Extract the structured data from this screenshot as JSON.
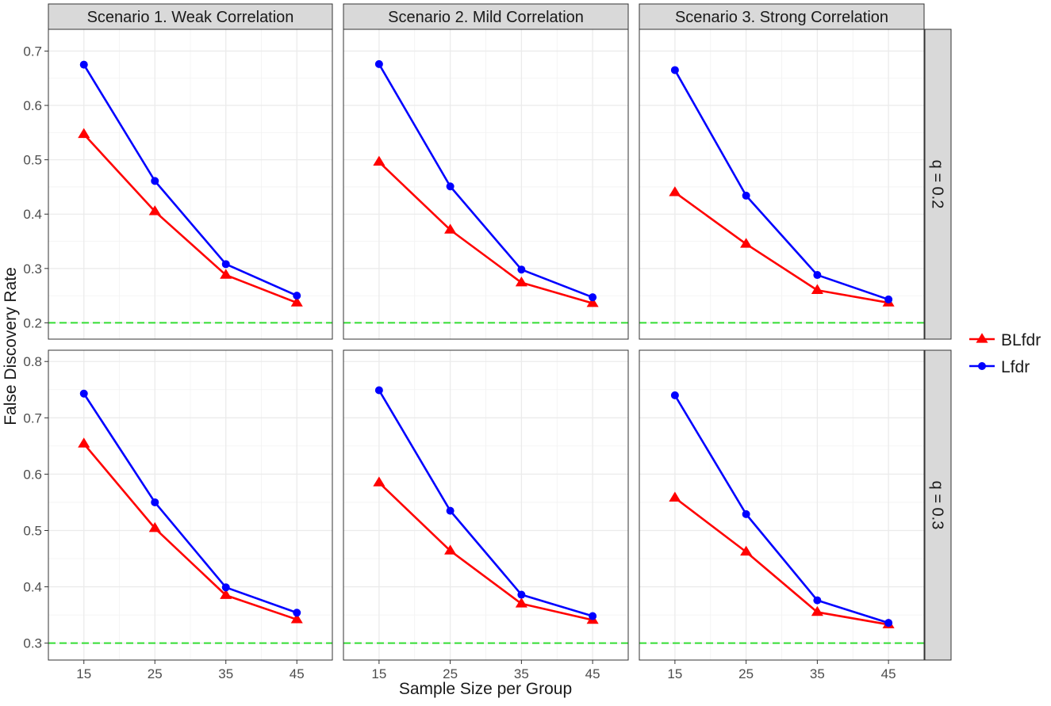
{
  "chart_data": {
    "type": "line",
    "title": "",
    "xlabel": "Sample Size per Group",
    "ylabel": "False Discovery Rate",
    "x": [
      15,
      25,
      35,
      45
    ],
    "x_tick_labels": [
      "15",
      "25",
      "35",
      "45"
    ],
    "xlim": [
      10,
      50
    ],
    "legend": {
      "placement": "right",
      "entries": [
        {
          "name": "BLfdr",
          "color": "#ff0000",
          "marker": "triangle"
        },
        {
          "name": "Lfdr",
          "color": "#0000ff",
          "marker": "circle"
        }
      ]
    },
    "reference_color": "#33dd33",
    "columns": [
      "Scenario 1. Weak Correlation",
      "Scenario 2. Mild Correlation",
      "Scenario 3. Strong Correlation"
    ],
    "rows": [
      {
        "label": "q = 0.2",
        "reference_line": 0.2,
        "ylim": [
          0.17,
          0.74
        ],
        "y_ticks": [
          0.2,
          0.3,
          0.4,
          0.5,
          0.6,
          0.7
        ],
        "y_tick_labels": [
          "0.2",
          "0.3",
          "0.4",
          "0.5",
          "0.6",
          "0.7"
        ],
        "panels": [
          {
            "series": [
              {
                "name": "BLfdr",
                "values": [
                  0.547,
                  0.405,
                  0.288,
                  0.237
                ]
              },
              {
                "name": "Lfdr",
                "values": [
                  0.675,
                  0.461,
                  0.308,
                  0.25
                ]
              }
            ]
          },
          {
            "series": [
              {
                "name": "BLfdr",
                "values": [
                  0.496,
                  0.371,
                  0.274,
                  0.236
                ]
              },
              {
                "name": "Lfdr",
                "values": [
                  0.676,
                  0.451,
                  0.298,
                  0.247
                ]
              }
            ]
          },
          {
            "series": [
              {
                "name": "BLfdr",
                "values": [
                  0.44,
                  0.345,
                  0.26,
                  0.237
                ]
              },
              {
                "name": "Lfdr",
                "values": [
                  0.665,
                  0.434,
                  0.288,
                  0.243
                ]
              }
            ]
          }
        ]
      },
      {
        "label": "q = 0.3",
        "reference_line": 0.3,
        "ylim": [
          0.27,
          0.82
        ],
        "y_ticks": [
          0.3,
          0.4,
          0.5,
          0.6,
          0.7,
          0.8
        ],
        "y_tick_labels": [
          "0.3",
          "0.4",
          "0.5",
          "0.6",
          "0.7",
          "0.8"
        ],
        "panels": [
          {
            "series": [
              {
                "name": "BLfdr",
                "values": [
                  0.654,
                  0.504,
                  0.385,
                  0.342
                ]
              },
              {
                "name": "Lfdr",
                "values": [
                  0.743,
                  0.55,
                  0.399,
                  0.354
                ]
              }
            ]
          },
          {
            "series": [
              {
                "name": "BLfdr",
                "values": [
                  0.585,
                  0.464,
                  0.37,
                  0.341
                ]
              },
              {
                "name": "Lfdr",
                "values": [
                  0.749,
                  0.535,
                  0.386,
                  0.348
                ]
              }
            ]
          },
          {
            "series": [
              {
                "name": "BLfdr",
                "values": [
                  0.558,
                  0.462,
                  0.355,
                  0.333
                ]
              },
              {
                "name": "Lfdr",
                "values": [
                  0.74,
                  0.529,
                  0.376,
                  0.336
                ]
              }
            ]
          }
        ]
      }
    ]
  }
}
